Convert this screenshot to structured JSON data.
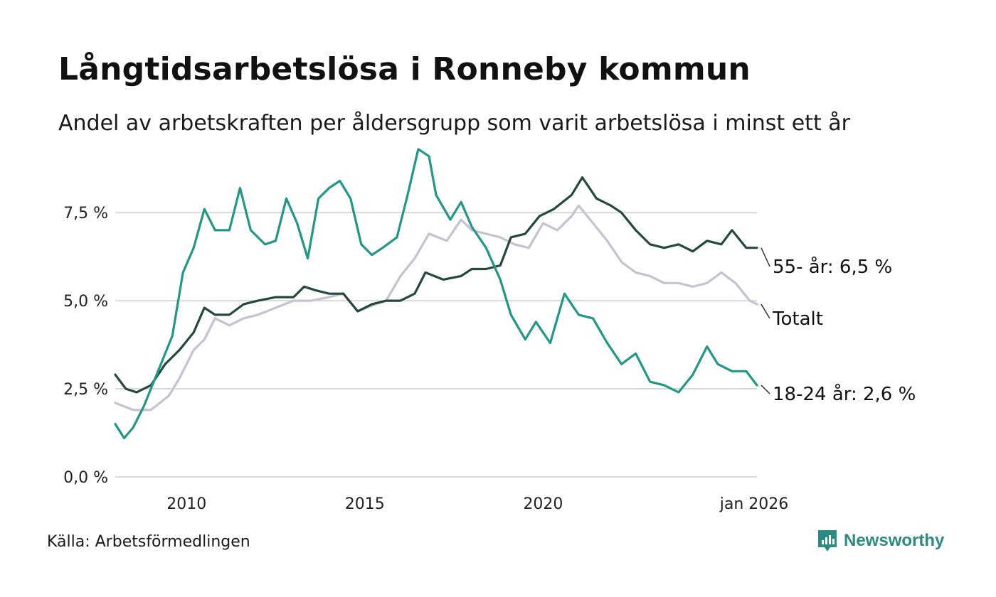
{
  "title": "Långtidsarbetslösa i Ronneby kommun",
  "subtitle": "Andel av arbetskraften per åldersgrupp som varit arbetslösa i minst ett år",
  "source": "Källa: Arbetsförmedlingen",
  "brand": {
    "name": "Newsworthy",
    "icon": "newsworthy-logo-icon"
  },
  "colors": {
    "older": "#23493f",
    "young": "#1f9888",
    "total": "#c5c2d1",
    "grid": "#d9d9d9"
  },
  "chart_data": {
    "type": "line",
    "title": "Långtidsarbetslösa i Ronneby kommun",
    "xlabel": "",
    "ylabel": "",
    "xlim": [
      2008.0,
      2026.0
    ],
    "ylim": [
      0,
      9.5
    ],
    "yticks": [
      {
        "value": 0,
        "label": "0,0 %"
      },
      {
        "value": 2.5,
        "label": "2,5 %"
      },
      {
        "value": 5,
        "label": "5,0 %"
      },
      {
        "value": 7.5,
        "label": "7,5 %"
      }
    ],
    "xticks": [
      {
        "value": 2010,
        "label": "2010"
      },
      {
        "value": 2015,
        "label": "2015"
      },
      {
        "value": 2020,
        "label": "2020"
      },
      {
        "value": 2026.0,
        "label": "jan 2026"
      }
    ],
    "grid": true,
    "series": [
      {
        "name": "Totalt",
        "label": "Totalt",
        "color": "#c5c2d1",
        "points": [
          [
            2008.0,
            2.1
          ],
          [
            2008.5,
            1.9
          ],
          [
            2009.0,
            1.9
          ],
          [
            2009.5,
            2.3
          ],
          [
            2009.8,
            2.8
          ],
          [
            2010.2,
            3.6
          ],
          [
            2010.5,
            3.9
          ],
          [
            2010.8,
            4.5
          ],
          [
            2011.2,
            4.3
          ],
          [
            2011.6,
            4.5
          ],
          [
            2012.0,
            4.6
          ],
          [
            2012.5,
            4.8
          ],
          [
            2013.0,
            5.0
          ],
          [
            2013.5,
            5.0
          ],
          [
            2014.0,
            5.1
          ],
          [
            2014.4,
            5.2
          ],
          [
            2014.8,
            4.7
          ],
          [
            2015.3,
            4.9
          ],
          [
            2015.6,
            5.0
          ],
          [
            2016.0,
            5.7
          ],
          [
            2016.4,
            6.2
          ],
          [
            2016.8,
            6.9
          ],
          [
            2017.3,
            6.7
          ],
          [
            2017.7,
            7.3
          ],
          [
            2018.0,
            7.0
          ],
          [
            2018.4,
            6.9
          ],
          [
            2018.8,
            6.8
          ],
          [
            2019.2,
            6.6
          ],
          [
            2019.6,
            6.5
          ],
          [
            2020.0,
            7.2
          ],
          [
            2020.4,
            7.0
          ],
          [
            2020.8,
            7.4
          ],
          [
            2021.0,
            7.7
          ],
          [
            2021.4,
            7.2
          ],
          [
            2021.8,
            6.7
          ],
          [
            2022.2,
            6.1
          ],
          [
            2022.6,
            5.8
          ],
          [
            2023.0,
            5.7
          ],
          [
            2023.4,
            5.5
          ],
          [
            2023.8,
            5.5
          ],
          [
            2024.2,
            5.4
          ],
          [
            2024.6,
            5.5
          ],
          [
            2025.0,
            5.8
          ],
          [
            2025.4,
            5.5
          ],
          [
            2025.8,
            5.0
          ],
          [
            2026.0,
            4.9
          ]
        ]
      },
      {
        "name": "55- år",
        "label": "55- år: 6,5 %",
        "color": "#23493f",
        "points": [
          [
            2008.0,
            2.9
          ],
          [
            2008.3,
            2.5
          ],
          [
            2008.6,
            2.4
          ],
          [
            2009.0,
            2.6
          ],
          [
            2009.4,
            3.2
          ],
          [
            2009.8,
            3.6
          ],
          [
            2010.2,
            4.1
          ],
          [
            2010.5,
            4.8
          ],
          [
            2010.8,
            4.6
          ],
          [
            2011.2,
            4.6
          ],
          [
            2011.6,
            4.9
          ],
          [
            2012.0,
            5.0
          ],
          [
            2012.5,
            5.1
          ],
          [
            2013.0,
            5.1
          ],
          [
            2013.3,
            5.4
          ],
          [
            2013.6,
            5.3
          ],
          [
            2014.0,
            5.2
          ],
          [
            2014.4,
            5.2
          ],
          [
            2014.8,
            4.7
          ],
          [
            2015.2,
            4.9
          ],
          [
            2015.6,
            5.0
          ],
          [
            2016.0,
            5.0
          ],
          [
            2016.4,
            5.2
          ],
          [
            2016.7,
            5.8
          ],
          [
            2017.2,
            5.6
          ],
          [
            2017.7,
            5.7
          ],
          [
            2018.0,
            5.9
          ],
          [
            2018.4,
            5.9
          ],
          [
            2018.8,
            6.0
          ],
          [
            2019.1,
            6.8
          ],
          [
            2019.5,
            6.9
          ],
          [
            2019.9,
            7.4
          ],
          [
            2020.3,
            7.6
          ],
          [
            2020.8,
            8.0
          ],
          [
            2021.1,
            8.5
          ],
          [
            2021.5,
            7.9
          ],
          [
            2021.9,
            7.7
          ],
          [
            2022.2,
            7.5
          ],
          [
            2022.6,
            7.0
          ],
          [
            2023.0,
            6.6
          ],
          [
            2023.4,
            6.5
          ],
          [
            2023.8,
            6.6
          ],
          [
            2024.2,
            6.4
          ],
          [
            2024.6,
            6.7
          ],
          [
            2025.0,
            6.6
          ],
          [
            2025.3,
            7.0
          ],
          [
            2025.7,
            6.5
          ],
          [
            2026.0,
            6.5
          ]
        ]
      },
      {
        "name": "18-24 år",
        "label": "18-24 år: 2,6 %",
        "color": "#1f9888",
        "points": [
          [
            2008.0,
            1.5
          ],
          [
            2008.25,
            1.1
          ],
          [
            2008.5,
            1.4
          ],
          [
            2008.8,
            2.0
          ],
          [
            2009.2,
            3.0
          ],
          [
            2009.6,
            4.0
          ],
          [
            2009.9,
            5.8
          ],
          [
            2010.2,
            6.5
          ],
          [
            2010.5,
            7.6
          ],
          [
            2010.8,
            7.0
          ],
          [
            2011.2,
            7.0
          ],
          [
            2011.5,
            8.2
          ],
          [
            2011.8,
            7.0
          ],
          [
            2012.2,
            6.6
          ],
          [
            2012.5,
            6.7
          ],
          [
            2012.8,
            7.9
          ],
          [
            2013.1,
            7.2
          ],
          [
            2013.4,
            6.2
          ],
          [
            2013.7,
            7.9
          ],
          [
            2014.0,
            8.2
          ],
          [
            2014.3,
            8.4
          ],
          [
            2014.6,
            7.9
          ],
          [
            2014.9,
            6.6
          ],
          [
            2015.2,
            6.3
          ],
          [
            2015.5,
            6.5
          ],
          [
            2015.9,
            6.8
          ],
          [
            2016.2,
            8.0
          ],
          [
            2016.5,
            9.3
          ],
          [
            2016.8,
            9.1
          ],
          [
            2017.0,
            8.0
          ],
          [
            2017.4,
            7.3
          ],
          [
            2017.7,
            7.8
          ],
          [
            2018.0,
            7.1
          ],
          [
            2018.4,
            6.5
          ],
          [
            2018.8,
            5.6
          ],
          [
            2019.1,
            4.6
          ],
          [
            2019.5,
            3.9
          ],
          [
            2019.8,
            4.4
          ],
          [
            2020.2,
            3.8
          ],
          [
            2020.6,
            5.2
          ],
          [
            2021.0,
            4.6
          ],
          [
            2021.4,
            4.5
          ],
          [
            2021.8,
            3.8
          ],
          [
            2022.2,
            3.2
          ],
          [
            2022.6,
            3.5
          ],
          [
            2023.0,
            2.7
          ],
          [
            2023.4,
            2.6
          ],
          [
            2023.8,
            2.4
          ],
          [
            2024.2,
            2.9
          ],
          [
            2024.6,
            3.7
          ],
          [
            2024.9,
            3.2
          ],
          [
            2025.3,
            3.0
          ],
          [
            2025.7,
            3.0
          ],
          [
            2026.0,
            2.6
          ]
        ]
      }
    ]
  }
}
